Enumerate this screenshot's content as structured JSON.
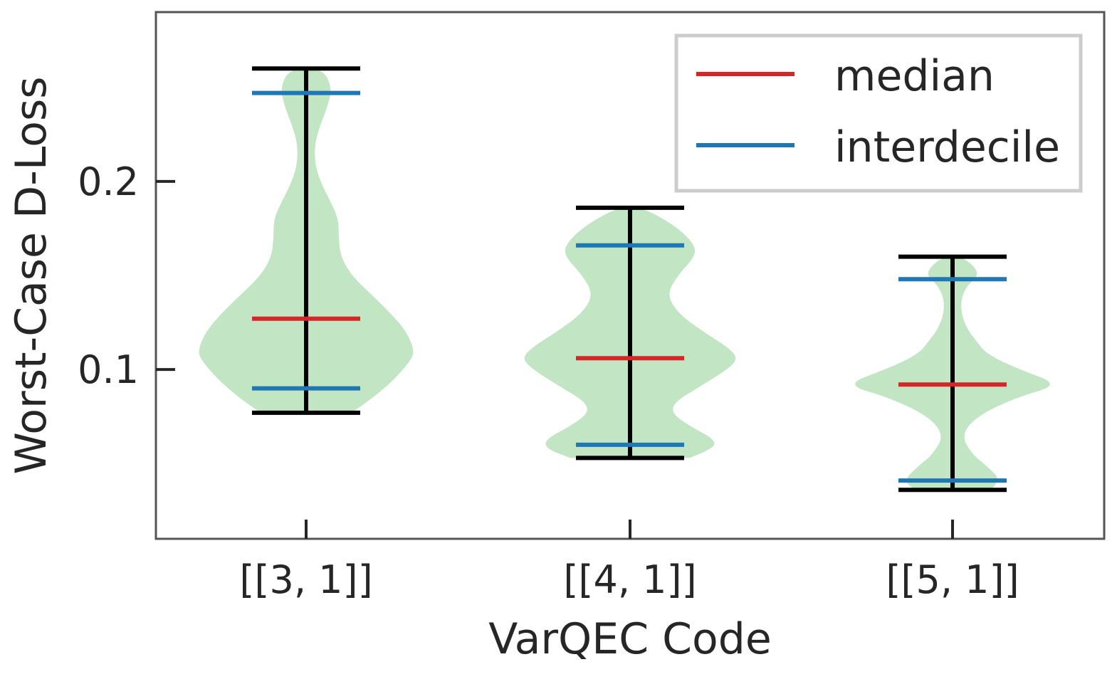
{
  "chart_data": {
    "type": "violin",
    "xlabel": "VarQEC Code",
    "ylabel": "Worst-Case D-Loss",
    "ylim": [
      0.01,
      0.29
    ],
    "yticks": [
      0.1,
      0.2
    ],
    "ytick_labels": [
      "0.1",
      "0.2"
    ],
    "categories": [
      "[[3, 1]]",
      "[[4, 1]]",
      "[[5, 1]]"
    ],
    "violins": [
      {
        "category": "[[3, 1]]",
        "min": 0.077,
        "max": 0.26,
        "median": 0.127,
        "p10": 0.09,
        "p90": 0.247,
        "density": [
          [
            0.077,
            0.42
          ],
          [
            0.085,
            0.62
          ],
          [
            0.095,
            0.82
          ],
          [
            0.105,
            0.97
          ],
          [
            0.11,
            1.0
          ],
          [
            0.12,
            0.93
          ],
          [
            0.13,
            0.78
          ],
          [
            0.14,
            0.6
          ],
          [
            0.15,
            0.42
          ],
          [
            0.16,
            0.32
          ],
          [
            0.17,
            0.3
          ],
          [
            0.18,
            0.3
          ],
          [
            0.19,
            0.22
          ],
          [
            0.2,
            0.13
          ],
          [
            0.21,
            0.08
          ],
          [
            0.22,
            0.08
          ],
          [
            0.23,
            0.13
          ],
          [
            0.24,
            0.2
          ],
          [
            0.25,
            0.24
          ],
          [
            0.26,
            0.15
          ]
        ]
      },
      {
        "category": "[[4, 1]]",
        "min": 0.053,
        "max": 0.186,
        "median": 0.106,
        "p10": 0.06,
        "p90": 0.166,
        "density": [
          [
            0.053,
            0.55
          ],
          [
            0.058,
            0.78
          ],
          [
            0.063,
            0.78
          ],
          [
            0.07,
            0.55
          ],
          [
            0.077,
            0.38
          ],
          [
            0.083,
            0.42
          ],
          [
            0.09,
            0.62
          ],
          [
            0.1,
            0.9
          ],
          [
            0.106,
            1.0
          ],
          [
            0.112,
            0.9
          ],
          [
            0.12,
            0.68
          ],
          [
            0.13,
            0.44
          ],
          [
            0.14,
            0.34
          ],
          [
            0.15,
            0.44
          ],
          [
            0.16,
            0.6
          ],
          [
            0.166,
            0.6
          ],
          [
            0.175,
            0.45
          ],
          [
            0.183,
            0.22
          ],
          [
            0.186,
            0.08
          ]
        ]
      },
      {
        "category": "[[5, 1]]",
        "min": 0.036,
        "max": 0.16,
        "median": 0.092,
        "p10": 0.041,
        "p90": 0.148,
        "density": [
          [
            0.036,
            0.35
          ],
          [
            0.041,
            0.45
          ],
          [
            0.048,
            0.33
          ],
          [
            0.055,
            0.18
          ],
          [
            0.065,
            0.08
          ],
          [
            0.075,
            0.22
          ],
          [
            0.085,
            0.58
          ],
          [
            0.092,
            1.0
          ],
          [
            0.1,
            0.62
          ],
          [
            0.108,
            0.32
          ],
          [
            0.115,
            0.22
          ],
          [
            0.122,
            0.13
          ],
          [
            0.13,
            0.08
          ],
          [
            0.138,
            0.08
          ],
          [
            0.145,
            0.14
          ],
          [
            0.15,
            0.24
          ],
          [
            0.155,
            0.2
          ],
          [
            0.16,
            0.08
          ]
        ]
      }
    ],
    "legend": {
      "position": "top-right",
      "entries": [
        {
          "label": "median",
          "color": "#d62728"
        },
        {
          "label": "interdecile",
          "color": "#1f77b4"
        }
      ]
    },
    "colors": {
      "violin_fill": "#c2e6c4",
      "whisker": "#000000",
      "median": "#d62728",
      "interdecile": "#1f77b4",
      "frame": "#555555",
      "legend_frame": "#cccccc"
    },
    "grid": false
  }
}
